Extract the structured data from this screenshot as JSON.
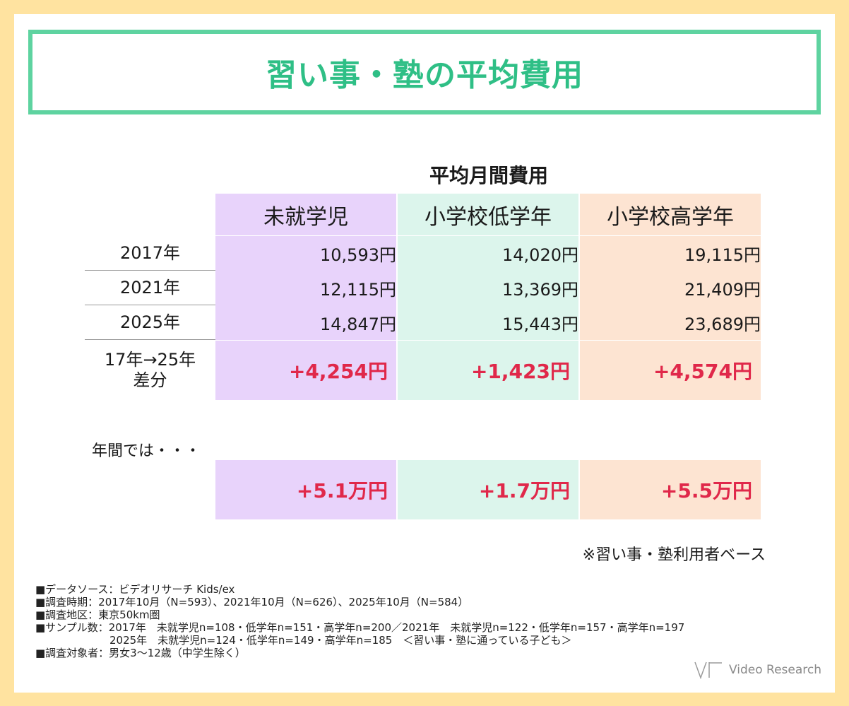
{
  "title": "習い事・塾の平均費用",
  "subtitle": "平均月間費用",
  "columns": [
    "未就学児",
    "小学校低学年",
    "小学校高学年"
  ],
  "rows": [
    {
      "label": "2017年",
      "values": [
        "10,593円",
        "14,020円",
        "19,115円"
      ]
    },
    {
      "label": "2021年",
      "values": [
        "12,115円",
        "13,369円",
        "21,409円"
      ]
    },
    {
      "label": "2025年",
      "values": [
        "14,847円",
        "15,443円",
        "23,689円"
      ]
    }
  ],
  "diff_row": {
    "label_line1": "17年→25年",
    "label_line2": "差分",
    "values": [
      "+4,254円",
      "+1,423円",
      "+4,574円"
    ]
  },
  "annual": {
    "label": "年間では・・・",
    "values": [
      "+5.1万円",
      "+1.7万円",
      "+5.5万円"
    ]
  },
  "note": "※習い事・塾利用者ベース",
  "footnotes": [
    "■データソース：ビデオリサーチ Kids/ex",
    "■調査時期：2017年10月（N=593）、2021年10月（N=626）、2025年10月（N=584）",
    "■調査地区：東京50km圏",
    "■サンプル数：2017年　未就学児n=108・低学年n=151・高学年n=200／2021年　未就学児n=122・低学年n=157・高学年n=197",
    "　　　　　　　2025年　未就学児n=124・低学年n=149・高学年n=185　＜習い事・塾に通っている子ども＞",
    "■調査対象者：男女3～12歳（中学生除く）"
  ],
  "logo_text": "Video Research",
  "colors": {
    "accent": "#5ed3a0",
    "col1": "#e8d3fb",
    "col2": "#dcf5ec",
    "col3": "#fde4d2",
    "diff": "#e0284a",
    "background": "#ffe3a0"
  }
}
